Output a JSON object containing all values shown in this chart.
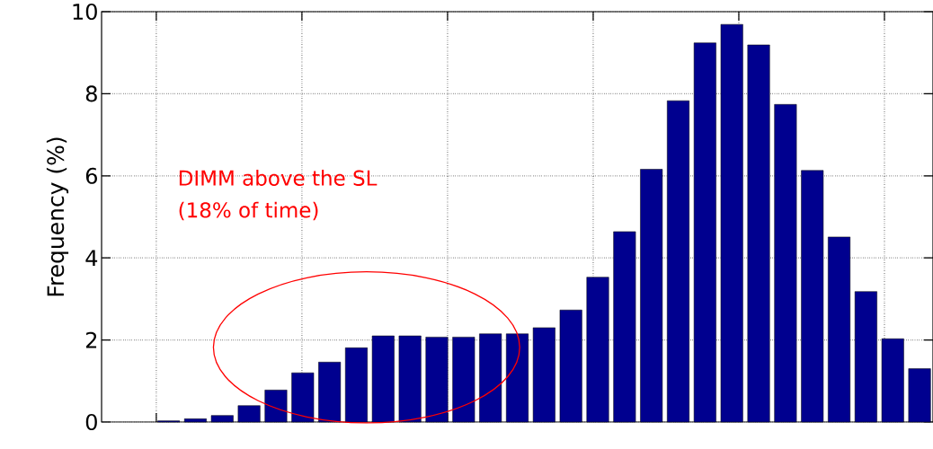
{
  "chart_data": {
    "type": "bar",
    "ylabel": "Frequency (%)",
    "categories": [
      null,
      null,
      null,
      null,
      null,
      null,
      null,
      null,
      null,
      null,
      null,
      null,
      null,
      null,
      null,
      null,
      null,
      null,
      null,
      null,
      null,
      null,
      null,
      null,
      null,
      null,
      null,
      null,
      null,
      null,
      null
    ],
    "values": [
      null,
      null,
      0.03,
      0.08,
      0.16,
      0.4,
      0.78,
      1.2,
      1.46,
      1.81,
      2.1,
      2.1,
      2.07,
      2.07,
      2.15,
      2.15,
      2.3,
      2.73,
      3.53,
      4.64,
      6.16,
      7.83,
      9.24,
      9.69,
      9.19,
      7.74,
      6.13,
      4.51,
      3.18,
      2.03,
      1.3
    ],
    "color": "#00008f",
    "ylim": [
      0,
      10
    ],
    "yticks": [
      0,
      2,
      4,
      6,
      8,
      10
    ],
    "grid": true,
    "annotations": [
      "DIMM above the SL",
      "(18% of time)"
    ]
  }
}
